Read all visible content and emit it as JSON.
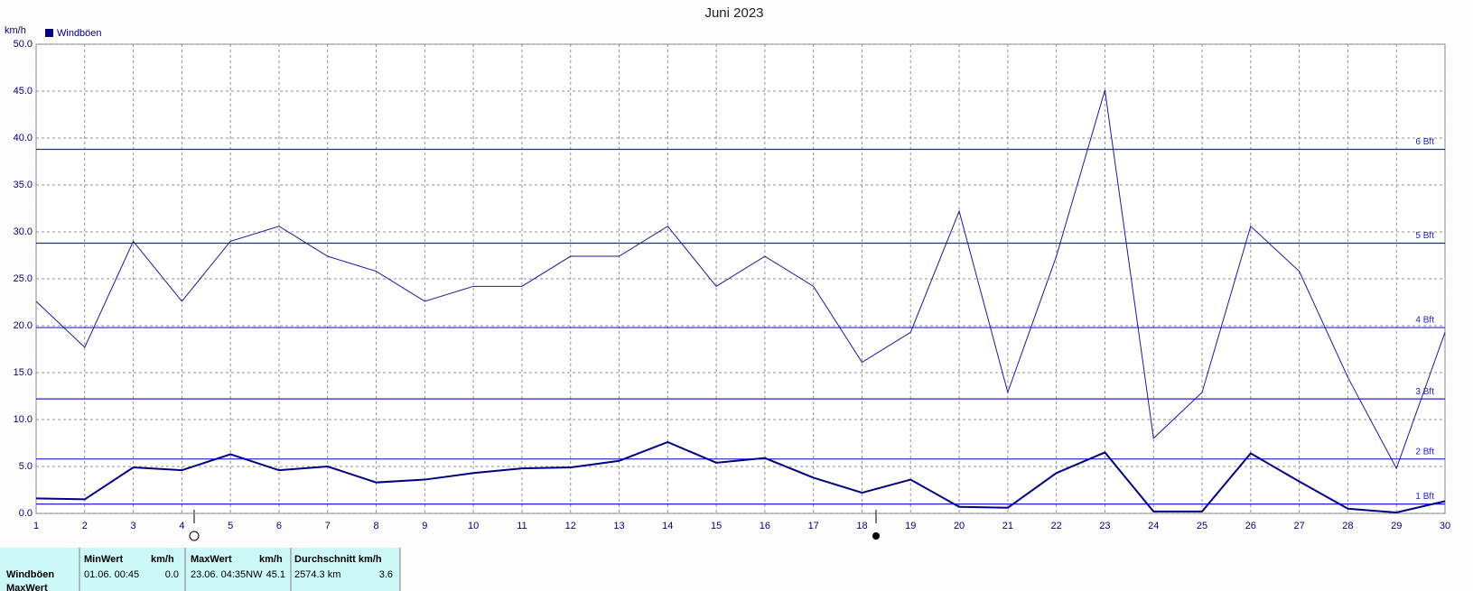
{
  "chart_data": {
    "type": "line",
    "title": "Juni 2023",
    "y_label": "km/h",
    "x": [
      1,
      2,
      3,
      4,
      5,
      6,
      7,
      8,
      9,
      10,
      11,
      12,
      13,
      14,
      15,
      16,
      17,
      18,
      19,
      20,
      21,
      22,
      23,
      24,
      25,
      26,
      27,
      28,
      29,
      30
    ],
    "series": [
      {
        "name": "Windböen",
        "color": "#000080",
        "width": 2,
        "values": [
          1.6,
          1.5,
          4.9,
          4.6,
          6.3,
          4.6,
          5.0,
          3.3,
          3.6,
          4.3,
          4.8,
          4.9,
          5.6,
          7.6,
          5.4,
          5.9,
          3.8,
          2.2,
          3.6,
          0.7,
          0.6,
          4.3,
          6.5,
          0.2,
          0.2,
          6.4,
          3.4,
          0.5,
          0.1,
          1.3
        ]
      },
      {
        "color": "#1a1aa0",
        "width": 1,
        "values": [
          22.6,
          17.7,
          29.0,
          22.6,
          29.0,
          30.6,
          27.4,
          25.8,
          22.6,
          24.2,
          24.2,
          27.4,
          27.4,
          30.6,
          24.2,
          27.4,
          24.2,
          16.1,
          19.3,
          32.2,
          12.9,
          27.4,
          45.1,
          8.0,
          12.9,
          30.6,
          25.8,
          14.5,
          4.8,
          19.3
        ]
      }
    ],
    "xlim": [
      1,
      30
    ],
    "xticks": [
      1,
      2,
      3,
      4,
      5,
      6,
      7,
      8,
      9,
      10,
      11,
      12,
      13,
      14,
      15,
      16,
      17,
      18,
      19,
      20,
      21,
      22,
      23,
      24,
      25,
      26,
      27,
      28,
      29,
      30
    ],
    "ylim": [
      0,
      50
    ],
    "yticks": [
      {
        "value": 0,
        "label": "0.0"
      },
      {
        "value": 5,
        "label": "5.0"
      },
      {
        "value": 10,
        "label": "10.0"
      },
      {
        "value": 15,
        "label": "15.0"
      },
      {
        "value": 20,
        "label": "20.0"
      },
      {
        "value": 25,
        "label": "25.0"
      },
      {
        "value": 30,
        "label": "30.0"
      },
      {
        "value": 35,
        "label": "35.0"
      },
      {
        "value": 40,
        "label": "40.0"
      },
      {
        "value": 45,
        "label": "45.0"
      },
      {
        "value": 50,
        "label": "50.0"
      }
    ],
    "grid": true,
    "reference_lines": [
      {
        "value": 1.0,
        "label": "1 Bft"
      },
      {
        "value": 5.8,
        "label": "2 Bft"
      },
      {
        "value": 12.2,
        "label": "3 Bft"
      },
      {
        "value": 19.8,
        "label": "4 Bft"
      },
      {
        "value": 28.8,
        "label": "5 Bft"
      },
      {
        "value": 38.8,
        "label": "6 Bft"
      }
    ],
    "reference_color": "#2020d0"
  },
  "table": {
    "columns": [
      "MinWert",
      "km/h",
      "MaxWert",
      "km/h",
      "Durchschnitt km/h"
    ],
    "rows": [
      {
        "label": "Windböen",
        "cells": [
          "01.06.  00:45",
          "0.0",
          "23.06.  04:35NW",
          "45.1",
          "2574.3 km",
          "3.6"
        ]
      },
      {
        "label": "MaxWert",
        "cells": []
      }
    ]
  }
}
